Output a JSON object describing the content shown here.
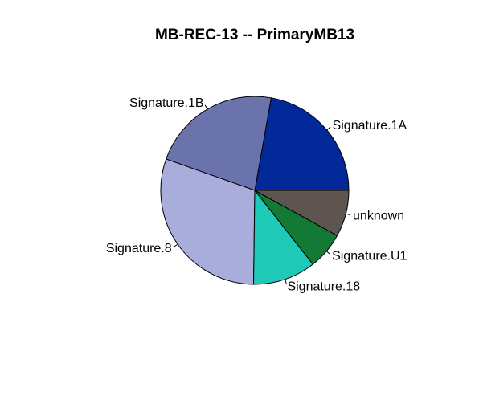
{
  "chart_data": {
    "type": "pie",
    "title": "MB-REC-13 -- PrimaryMB13",
    "start_angle_deg": 0,
    "direction": "counterclockwise",
    "slices": [
      {
        "label": "Signature.1A",
        "value": 0.222,
        "color": "#03289A"
      },
      {
        "label": "Signature.1B",
        "value": 0.224,
        "color": "#6A73AC"
      },
      {
        "label": "Signature.8",
        "value": 0.302,
        "color": "#A9ADDC"
      },
      {
        "label": "Signature.18",
        "value": 0.108,
        "color": "#1ECAB7"
      },
      {
        "label": "Signature.U1",
        "value": 0.064,
        "color": "#127A35"
      },
      {
        "label": "unknown",
        "value": 0.08,
        "color": "#5E5450"
      }
    ]
  }
}
